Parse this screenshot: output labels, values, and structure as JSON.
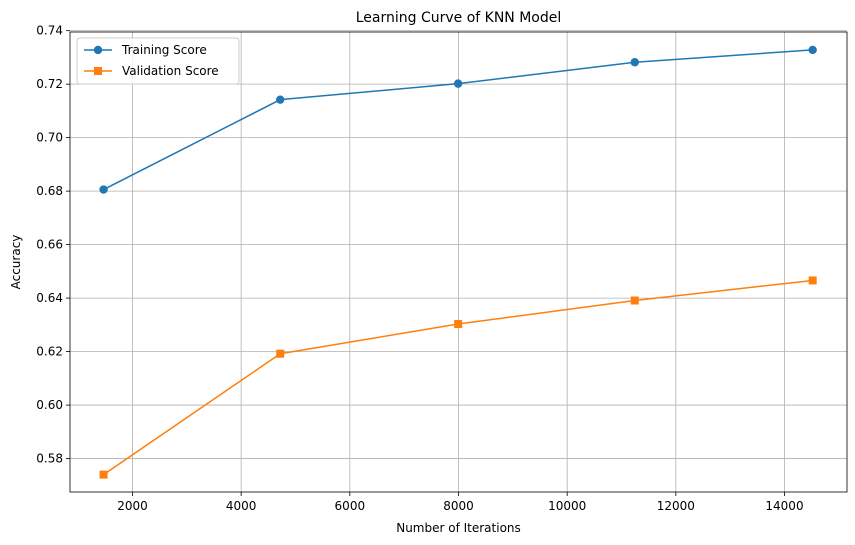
{
  "chart_data": {
    "type": "line",
    "title": "Learning Curve of KNN Model",
    "xlabel": "Number of Iterations",
    "ylabel": "Accuracy",
    "x": [
      1468,
      4719,
      7993,
      11244,
      14518
    ],
    "xlim": [
      850,
      15150
    ],
    "ylim": [
      0.5675,
      0.7395
    ],
    "xticks": [
      2000,
      4000,
      6000,
      8000,
      10000,
      12000,
      14000
    ],
    "xtick_labels": [
      "2000",
      "4000",
      "6000",
      "8000",
      "10000",
      "12000",
      "14000"
    ],
    "yticks": [
      0.58,
      0.6,
      0.62,
      0.64,
      0.66,
      0.68,
      0.7,
      0.72,
      0.74
    ],
    "ytick_labels": [
      "0.58",
      "0.60",
      "0.62",
      "0.64",
      "0.66",
      "0.68",
      "0.70",
      "0.72",
      "0.74"
    ],
    "grid": true,
    "legend_position": "top-left",
    "series": [
      {
        "name": "Training Score",
        "color": "#1f77b4",
        "marker": "circle",
        "values": [
          0.6806,
          0.7142,
          0.7202,
          0.7282,
          0.7328
        ]
      },
      {
        "name": "Validation Score",
        "color": "#ff7f0e",
        "marker": "square",
        "values": [
          0.574,
          0.6192,
          0.6303,
          0.6391,
          0.6466
        ]
      }
    ]
  }
}
